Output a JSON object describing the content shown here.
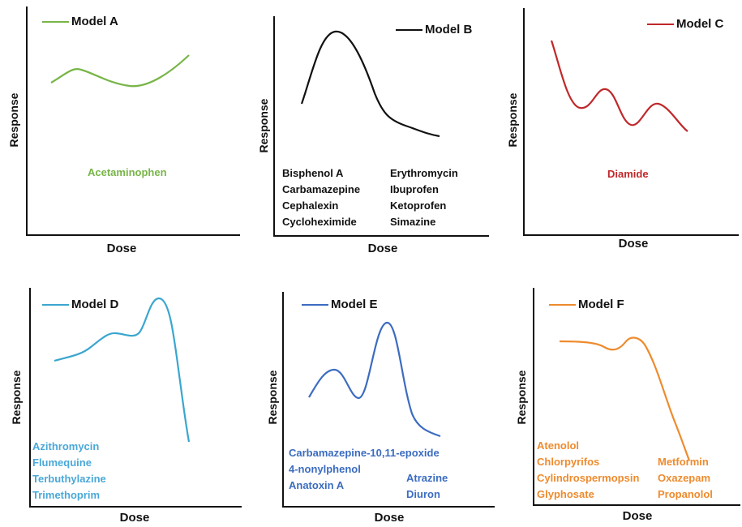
{
  "axis_labels": {
    "y": "Response",
    "x": "Dose"
  },
  "panels": {
    "a": {
      "model": "Model A",
      "color": "#78b548",
      "chemicals": [
        "Acetaminophen"
      ]
    },
    "b": {
      "model": "Model B",
      "color": "#111111",
      "chemicals_left": [
        "Bisphenol A",
        "Carbamazepine",
        "Cephalexin",
        "Cycloheximide"
      ],
      "chemicals_right": [
        "Erythromycin",
        "Ibuprofen",
        "Ketoprofen",
        "Simazine"
      ]
    },
    "c": {
      "model": "Model C",
      "color": "#c0282a",
      "chemicals": [
        "Diamide"
      ]
    },
    "d": {
      "model": "Model D",
      "color": "#3aa6cf",
      "text_color": "#4aa8d8",
      "chemicals": [
        "Azithromycin",
        "Flumequine",
        "Terbuthylazine",
        "Trimethoprim"
      ]
    },
    "e": {
      "model": "Model E",
      "color": "#3b6cc0",
      "chemicals_left": [
        "Carbamazepine-10,11-epoxide",
        "4-nonylphenol",
        "Anatoxin A"
      ],
      "chemicals_right": [
        "Atrazine",
        "Diuron"
      ]
    },
    "f": {
      "model": "Model F",
      "color": "#ee8b2e",
      "chemicals_left": [
        "Atenolol",
        "Chlorpyrifos",
        "Cylindrospermopsin",
        "Glyphosate"
      ],
      "chemicals_right": [
        "Metformin",
        "Oxazepam",
        "Propanolol"
      ]
    }
  }
}
